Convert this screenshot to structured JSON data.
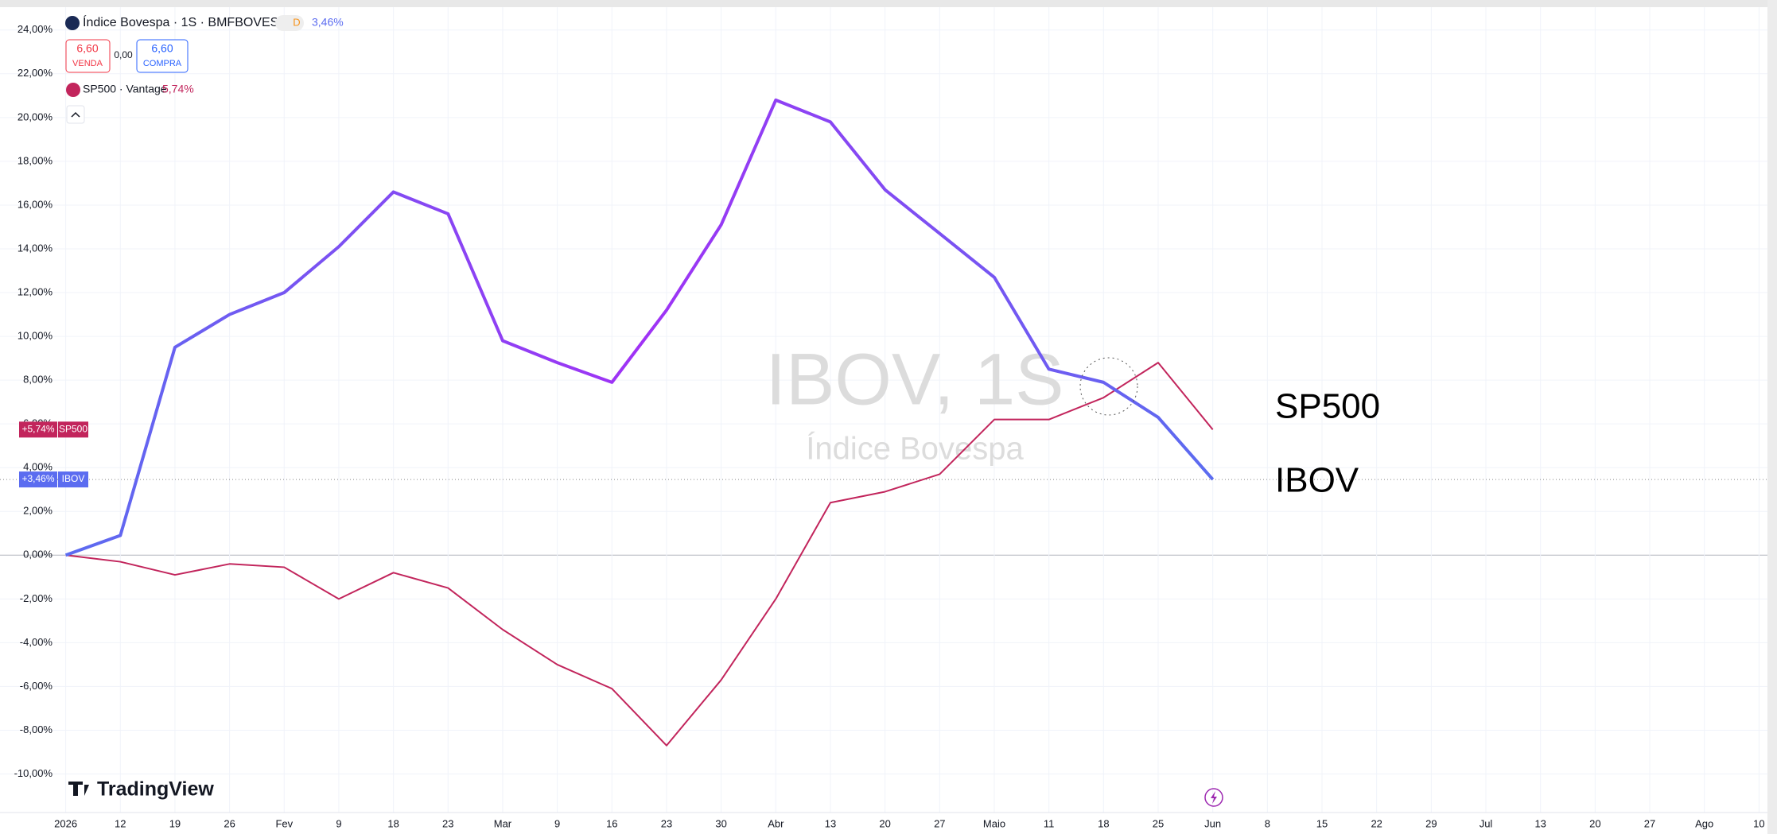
{
  "header": {
    "symbol": "Índice Bovespa · 1S · BMFBOVESPA",
    "badge": "D",
    "change": "3,46%",
    "sell_price": "6,60",
    "sell_label": "VENDA",
    "spread": "0,00",
    "buy_price": "6,60",
    "buy_label": "COMPRA",
    "compare": "SP500 · Vantage",
    "compare_change": "5,74%"
  },
  "watermark": {
    "title": "IBOV, 1S",
    "subtitle": "Índice Bovespa"
  },
  "logo": "TradingView",
  "chart_data": {
    "type": "line",
    "categories": [
      "2026",
      "12",
      "19",
      "26",
      "Fev",
      "9",
      "18",
      "23",
      "Mar",
      "9",
      "16",
      "23",
      "30",
      "Abr",
      "13",
      "20",
      "27",
      "Maio",
      "11",
      "18",
      "25",
      "Jun",
      "8",
      "15",
      "22",
      "29",
      "Jul",
      "13",
      "20",
      "27",
      "Ago",
      "10"
    ],
    "series": [
      {
        "name": "IBOV",
        "color": "#5b6cf0",
        "color_end": "#a032f5",
        "width": 4,
        "axis_label": "+3,46%",
        "values": [
          0,
          0.9,
          9.5,
          11.0,
          12.0,
          14.1,
          16.6,
          15.6,
          9.8,
          8.8,
          7.9,
          11.2,
          15.1,
          20.8,
          19.8,
          16.7,
          14.7,
          12.7,
          8.5,
          7.9,
          6.3,
          3.46,
          null,
          null,
          null,
          null,
          null,
          null,
          null,
          null,
          null,
          null
        ]
      },
      {
        "name": "SP500",
        "color": "#c2255c",
        "width": 2,
        "axis_label": "+5,74%",
        "values": [
          0,
          -0.3,
          -0.9,
          -0.4,
          -0.55,
          -2.0,
          -0.8,
          -1.5,
          -3.4,
          -5.0,
          -6.1,
          -8.7,
          -5.7,
          -2.0,
          2.4,
          2.9,
          3.7,
          6.2,
          6.2,
          7.2,
          8.8,
          5.74,
          null,
          null,
          null,
          null,
          null,
          null,
          null,
          null,
          null,
          null
        ]
      }
    ],
    "ylim": [
      -11.5,
      24.7
    ],
    "yticks": [
      {
        "value": -10,
        "label": "-10,00%"
      },
      {
        "value": -8,
        "label": "-8,00%"
      },
      {
        "value": -6,
        "label": "-6,00%"
      },
      {
        "value": -4,
        "label": "-4,00%"
      },
      {
        "value": -2,
        "label": "-2,00%"
      },
      {
        "value": 0,
        "label": "0,00%"
      },
      {
        "value": 2,
        "label": "2,00%"
      },
      {
        "value": 4,
        "label": "4,00%"
      },
      {
        "value": 6,
        "label": "6,00%"
      },
      {
        "value": 8,
        "label": "8,00%"
      },
      {
        "value": 10,
        "label": "10,00%"
      },
      {
        "value": 12,
        "label": "12,00%"
      },
      {
        "value": 14,
        "label": "14,00%"
      },
      {
        "value": 16,
        "label": "16,00%"
      },
      {
        "value": 18,
        "label": "18,00%"
      },
      {
        "value": 20,
        "label": "20,00%"
      },
      {
        "value": 22,
        "label": "22,00%"
      },
      {
        "value": 24,
        "label": "24,00%"
      }
    ],
    "grid": true
  }
}
